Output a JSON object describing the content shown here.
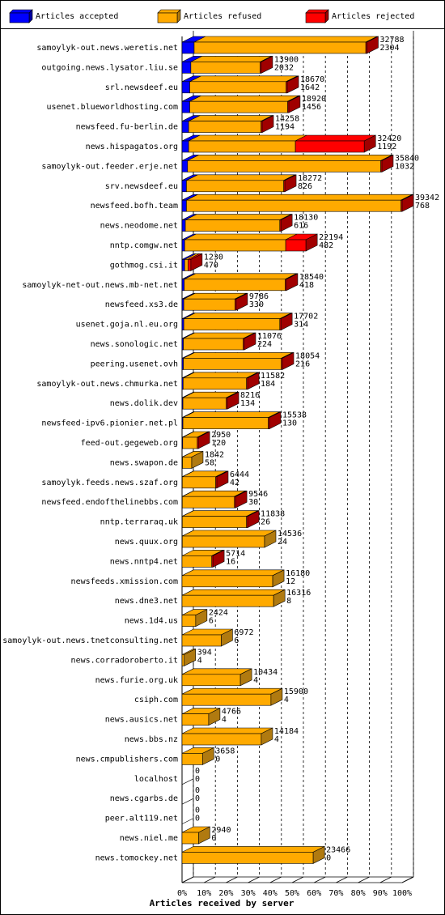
{
  "chart_data": {
    "type": "bar3d",
    "orientation": "horizontal",
    "xlabel": "Articles received by server",
    "xlim": [
      0,
      100
    ],
    "xticks": [
      {
        "value": 0,
        "label": "0%"
      },
      {
        "value": 10,
        "label": "10%"
      },
      {
        "value": 20,
        "label": "20%"
      },
      {
        "value": 30,
        "label": "30%"
      },
      {
        "value": 40,
        "label": "40%"
      },
      {
        "value": 50,
        "label": "50%"
      },
      {
        "value": 60,
        "label": "60%"
      },
      {
        "value": 70,
        "label": "70%"
      },
      {
        "value": 80,
        "label": "80%"
      },
      {
        "value": 90,
        "label": "90%"
      },
      {
        "value": 100,
        "label": "100%"
      }
    ],
    "grid": true,
    "legend": "top",
    "categories": [
      "samoylyk-out.news.weretis.net",
      "outgoing.news.lysator.liu.se",
      "srl.newsdeef.eu",
      "usenet.blueworldhosting.com",
      "newsfeed.fu-berlin.de",
      "news.hispagatos.org",
      "samoylyk-out.feeder.erje.net",
      "srv.newsdeef.eu",
      "newsfeed.bofh.team",
      "news.neodome.net",
      "nntp.comgw.net",
      "gothmog.csi.it",
      "samoylyk-net-out.news.mb-net.net",
      "newsfeed.xs3.de",
      "usenet.goja.nl.eu.org",
      "news.sonologic.net",
      "peering.usenet.ovh",
      "samoylyk-out.news.chmurka.net",
      "news.dolik.dev",
      "newsfeed-ipv6.pionier.net.pl",
      "feed-out.gegeweb.org",
      "news.swapon.de",
      "samoylyk.feeds.news.szaf.org",
      "newsfeed.endofthelinebbs.com",
      "nntp.terraraq.uk",
      "news.quux.org",
      "news.nntp4.net",
      "newsfeeds.xmission.com",
      "news.dne3.net",
      "news.1d4.us",
      "samoylyk-out.news.tnetconsulting.net",
      "news.corradoroberto.it",
      "news.furie.org.uk",
      "csiph.com",
      "news.ausics.net",
      "news.bbs.nz",
      "news.cmpublishers.com",
      "localhost",
      "news.cgarbs.de",
      "peer.alt119.net",
      "news.niel.me",
      "news.tomockey.net"
    ],
    "series": [
      {
        "name": "Articles accepted",
        "color": "#0000ff",
        "side": "#0000a0",
        "values": [
          5.5,
          4,
          3.5,
          3.5,
          3,
          3,
          2.5,
          2,
          2,
          1.5,
          1.2,
          1.2,
          1,
          0.8,
          0.8,
          0.6,
          0.6,
          0.5,
          0.4,
          0.4,
          0.3,
          0.2,
          0.1,
          0.1,
          0.1,
          0.1,
          0,
          0,
          0,
          0,
          0,
          0,
          0,
          0,
          0,
          0,
          0,
          0,
          0,
          0,
          0,
          0
        ]
      },
      {
        "name": "Articles refused",
        "color": "#ffaa00",
        "side": "#b07a10",
        "values": [
          78,
          31.5,
          43.8,
          44.5,
          32.9,
          48.5,
          87.8,
          44.2,
          97.5,
          42.9,
          45.9,
          1.5,
          45.9,
          23.3,
          43.6,
          27.2,
          44.5,
          28.8,
          19.7,
          38.8,
          6.6,
          4.2,
          15.2,
          23.7,
          29.2,
          37.4,
          13.5,
          41.2,
          41.6,
          6.2,
          17.8,
          1,
          26.5,
          40.4,
          12.1,
          36,
          9.3,
          0,
          0,
          0,
          7.5,
          59.6
        ]
      },
      {
        "name": "Articles rejected",
        "color": "#ff0000",
        "side": "#a00000",
        "values": [
          0.5,
          0.5,
          0.5,
          0.5,
          0.5,
          31.3,
          0.5,
          0.5,
          0.5,
          0.5,
          9.2,
          1.3,
          0.5,
          0.5,
          0.5,
          0.5,
          0.5,
          0.5,
          0.5,
          0.5,
          0.5,
          0,
          0.5,
          0.5,
          0.5,
          0,
          0.5,
          0,
          0,
          0,
          0,
          0,
          0,
          0,
          0,
          0,
          0,
          0,
          0,
          0,
          0,
          0
        ]
      }
    ],
    "count_labels": [
      [
        32788,
        2304
      ],
      [
        13900,
        2032
      ],
      [
        18670,
        1642
      ],
      [
        18920,
        1456
      ],
      [
        14258,
        1194
      ],
      [
        32420,
        1192
      ],
      [
        35840,
        1032
      ],
      [
        18272,
        826
      ],
      [
        39342,
        768
      ],
      [
        18130,
        616
      ],
      [
        22194,
        482
      ],
      [
        1230,
        470
      ],
      [
        18540,
        418
      ],
      [
        9786,
        330
      ],
      [
        17702,
        314
      ],
      [
        11076,
        224
      ],
      [
        18054,
        216
      ],
      [
        11582,
        184
      ],
      [
        8216,
        134
      ],
      [
        15538,
        130
      ],
      [
        2950,
        120
      ],
      [
        1842,
        58
      ],
      [
        6444,
        42
      ],
      [
        9546,
        30
      ],
      [
        11838,
        26
      ],
      [
        14536,
        24
      ],
      [
        5714,
        16
      ],
      [
        16180,
        12
      ],
      [
        16316,
        8
      ],
      [
        2424,
        6
      ],
      [
        6972,
        6
      ],
      [
        394,
        4
      ],
      [
        10434,
        4
      ],
      [
        15900,
        4
      ],
      [
        4766,
        4
      ],
      [
        14184,
        4
      ],
      [
        3658,
        0
      ],
      [
        0,
        0
      ],
      [
        0,
        0
      ],
      [
        0,
        0
      ],
      [
        2940,
        0
      ],
      [
        23466,
        0
      ]
    ]
  }
}
